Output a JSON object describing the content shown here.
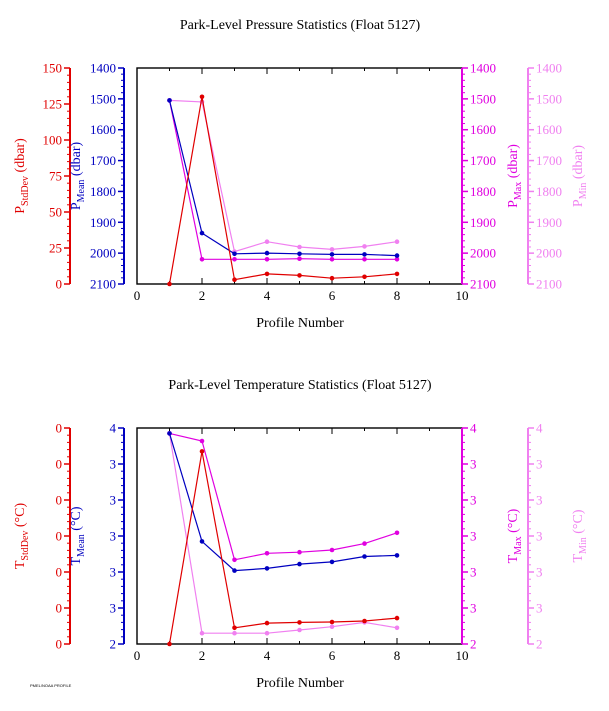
{
  "footer_text": "PMEL/NOAA PROFILE",
  "colors": {
    "stddev": "#e00000",
    "mean": "#0000c0",
    "max": "#e000e0",
    "min": "#f080f0",
    "axis": "#000000"
  },
  "chart_data": [
    {
      "type": "line",
      "title": "Park-Level Pressure Statistics (Float 5127)",
      "xlabel": "Profile Number",
      "xlim": [
        0,
        10
      ],
      "x_ticks": [
        "0",
        "2",
        "4",
        "6",
        "8",
        "10"
      ],
      "axes": [
        {
          "key": "stddev",
          "label_main": "P",
          "label_sub": "StdDev",
          "label_unit": " (dbar)",
          "color": "#e00000",
          "ylim": [
            0,
            150
          ],
          "ticks": [
            "0",
            "25",
            "50",
            "75",
            "100",
            "125",
            "150"
          ],
          "inverted": false
        },
        {
          "key": "mean",
          "label_main": "P",
          "label_sub": "Mean",
          "label_unit": " (dbar)",
          "color": "#0000c0",
          "ylim": [
            2100,
            1400
          ],
          "ticks": [
            "2100",
            "2000",
            "1900",
            "1800",
            "1700",
            "1600",
            "1500",
            "1400"
          ],
          "inverted": true
        },
        {
          "key": "max",
          "label_main": "P",
          "label_sub": "Max",
          "label_unit": " (dbar)",
          "color": "#e000e0",
          "ylim": [
            2100,
            1400
          ],
          "ticks": [
            "2100",
            "2000",
            "1900",
            "1800",
            "1700",
            "1600",
            "1500",
            "1400"
          ],
          "inverted": true
        },
        {
          "key": "min",
          "label_main": "P",
          "label_sub": "Min",
          "label_unit": " (dbar)",
          "color": "#f080f0",
          "ylim": [
            2100,
            1400
          ],
          "ticks": [
            "2100",
            "2000",
            "1900",
            "1800",
            "1700",
            "1600",
            "1500",
            "1400"
          ],
          "inverted": true
        }
      ],
      "series": [
        {
          "axis": "stddev",
          "x": [
            1,
            2,
            3,
            4,
            5,
            6,
            7,
            8
          ],
          "y": [
            0,
            130,
            3,
            7,
            6,
            4,
            5,
            7
          ]
        },
        {
          "axis": "mean",
          "x": [
            1,
            2,
            3,
            4,
            5,
            6,
            7,
            8
          ],
          "y": [
            1505,
            1935,
            2002,
            2000,
            2002,
            2004,
            2004,
            2008
          ]
        },
        {
          "axis": "max",
          "x": [
            1,
            2,
            3,
            4,
            5,
            6,
            7,
            8
          ],
          "y": [
            1505,
            2020,
            2020,
            2020,
            2018,
            2020,
            2020,
            2020
          ]
        },
        {
          "axis": "min",
          "x": [
            1,
            2,
            3,
            4,
            5,
            6,
            7,
            8
          ],
          "y": [
            1505,
            1510,
            1995,
            1963,
            1980,
            1988,
            1978,
            1963
          ]
        }
      ]
    },
    {
      "type": "line",
      "title": "Park-Level Temperature Statistics (Float 5127)",
      "xlabel": "Profile Number",
      "xlim": [
        0,
        10
      ],
      "x_ticks": [
        "0",
        "2",
        "4",
        "6",
        "8",
        "10"
      ],
      "axes": [
        {
          "key": "stddev",
          "label_main": "T",
          "label_sub": "StdDev",
          "label_unit": " (°C)",
          "color": "#e00000",
          "ylim": [
            0,
            6
          ],
          "ticks": [
            "0",
            "0",
            "0",
            "0",
            "0",
            "0",
            "0"
          ],
          "inverted": false
        },
        {
          "key": "mean",
          "label_main": "T",
          "label_sub": "Mean",
          "label_unit": " (°C)",
          "color": "#0000c0",
          "ylim": [
            2,
            4
          ],
          "ticks": [
            "2",
            "3",
            "3",
            "3",
            "3",
            "3",
            "4"
          ],
          "inverted": false
        },
        {
          "key": "max",
          "label_main": "T",
          "label_sub": "Max",
          "label_unit": " (°C)",
          "color": "#e000e0",
          "ylim": [
            2,
            4
          ],
          "ticks": [
            "2",
            "3",
            "3",
            "3",
            "3",
            "3",
            "4"
          ],
          "inverted": false
        },
        {
          "key": "min",
          "label_main": "T",
          "label_sub": "Min",
          "label_unit": " (°C)",
          "color": "#f080f0",
          "ylim": [
            2,
            4
          ],
          "ticks": [
            "2",
            "3",
            "3",
            "3",
            "3",
            "3",
            "4"
          ],
          "inverted": false
        }
      ],
      "series": [
        {
          "axis": "stddev",
          "x": [
            1,
            2,
            3,
            4,
            5,
            6,
            7,
            8
          ],
          "y": [
            0.0,
            5.35,
            0.45,
            0.58,
            0.6,
            0.61,
            0.64,
            0.72
          ]
        },
        {
          "axis": "mean",
          "x": [
            1,
            2,
            3,
            4,
            5,
            6,
            7,
            8
          ],
          "y": [
            3.95,
            2.95,
            2.68,
            2.7,
            2.74,
            2.76,
            2.81,
            2.82
          ]
        },
        {
          "axis": "max",
          "x": [
            1,
            2,
            3,
            4,
            5,
            6,
            7,
            8
          ],
          "y": [
            3.95,
            3.88,
            2.78,
            2.84,
            2.85,
            2.87,
            2.93,
            3.03
          ]
        },
        {
          "axis": "min",
          "x": [
            1,
            2,
            3,
            4,
            5,
            6,
            7,
            8
          ],
          "y": [
            3.95,
            2.1,
            2.1,
            2.1,
            2.13,
            2.16,
            2.2,
            2.15
          ]
        }
      ]
    }
  ]
}
